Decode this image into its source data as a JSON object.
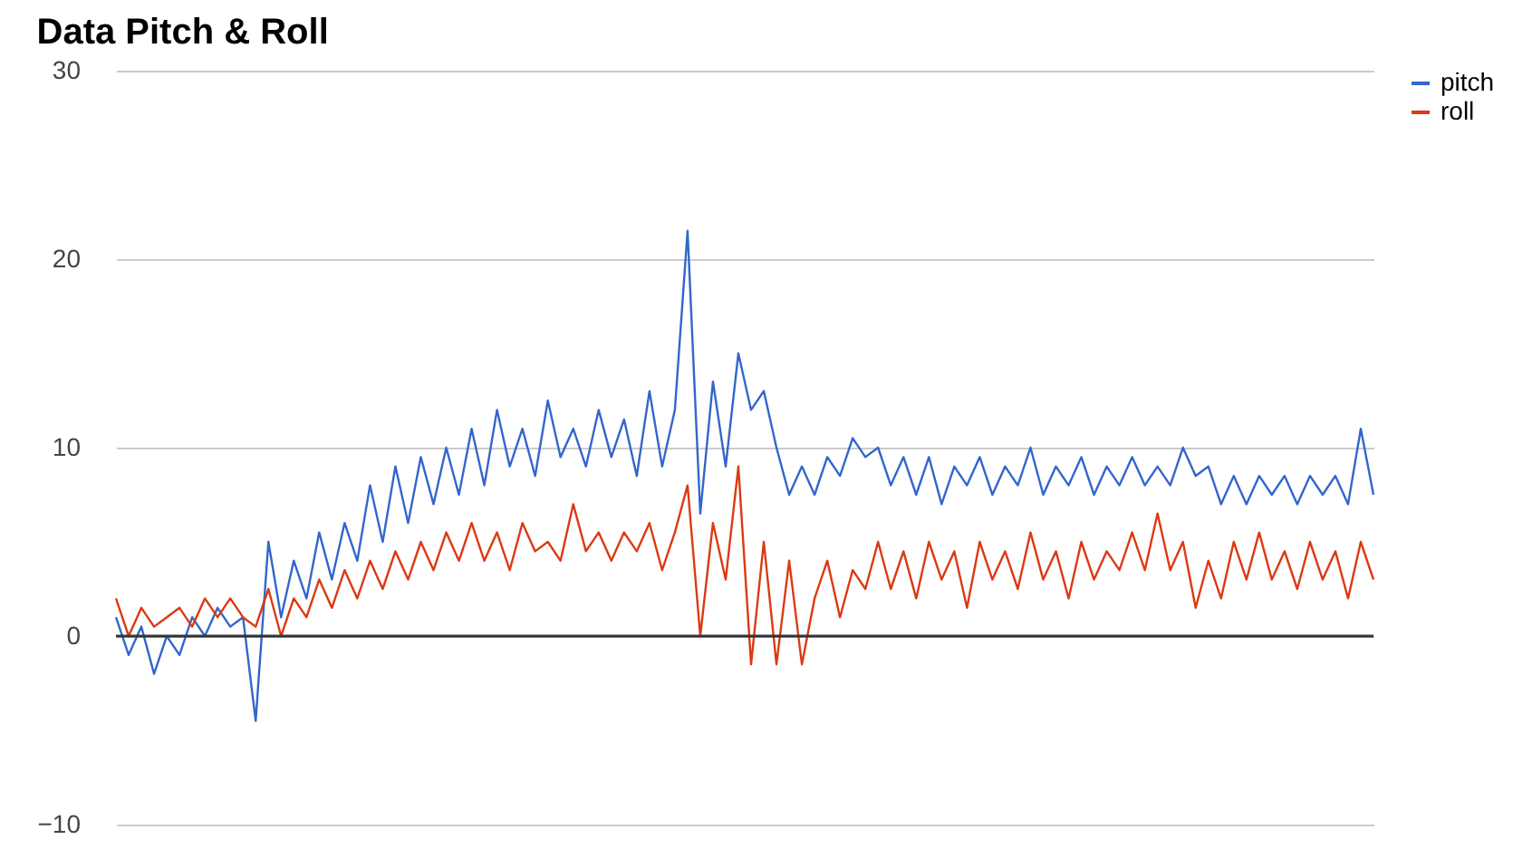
{
  "chart_data": {
    "type": "line",
    "title": "Data Pitch & Roll",
    "categories": [
      null,
      null,
      null,
      null,
      null,
      null,
      null,
      null,
      null,
      null,
      null,
      null,
      null,
      null,
      null,
      null,
      null,
      null,
      null,
      null,
      null,
      null,
      null,
      null,
      null,
      null,
      null,
      null,
      null,
      null,
      null,
      null,
      null,
      null,
      null,
      null,
      null,
      null,
      null,
      null,
      null,
      null,
      null,
      null,
      null,
      null,
      null,
      null,
      null,
      null,
      null,
      null,
      null,
      null,
      null,
      null,
      null,
      null,
      null,
      null,
      null,
      null,
      null,
      null,
      null,
      null,
      null,
      null,
      null,
      null,
      null,
      null,
      null,
      null,
      null,
      null,
      null,
      null,
      null,
      null,
      null,
      null,
      null,
      null,
      null,
      null,
      null,
      null,
      null,
      null,
      null,
      null,
      null,
      null,
      null,
      null,
      null,
      null,
      null,
      null
    ],
    "series": [
      {
        "name": "pitch",
        "color": "#3366cc",
        "values": [
          1,
          -1,
          0.5,
          -2,
          0,
          -1,
          1,
          0,
          1.5,
          0.5,
          1,
          -4.5,
          5,
          1,
          4,
          2,
          5.5,
          3,
          6,
          4,
          8,
          5,
          9,
          6,
          9.5,
          7,
          10,
          7.5,
          11,
          8,
          12,
          9,
          11,
          8.5,
          12.5,
          9.5,
          11,
          9,
          12,
          9.5,
          11.5,
          8.5,
          13,
          9,
          12,
          21.5,
          6.5,
          13.5,
          9,
          15,
          12,
          13,
          10,
          7.5,
          9,
          7.5,
          9.5,
          8.5,
          10.5,
          9.5,
          10,
          8,
          9.5,
          7.5,
          9.5,
          7,
          9,
          8,
          9.5,
          7.5,
          9,
          8,
          10,
          7.5,
          9,
          8,
          9.5,
          7.5,
          9,
          8,
          9.5,
          8,
          9,
          8,
          10,
          8.5,
          9,
          7,
          8.5,
          7,
          8.5,
          7.5,
          8.5,
          7,
          8.5,
          7.5,
          8.5,
          7,
          11,
          7.5
        ]
      },
      {
        "name": "roll",
        "color": "#dc3912",
        "values": [
          2,
          0,
          1.5,
          0.5,
          1,
          1.5,
          0.5,
          2,
          1,
          2,
          1,
          0.5,
          2.5,
          0,
          2,
          1,
          3,
          1.5,
          3.5,
          2,
          4,
          2.5,
          4.5,
          3,
          5,
          3.5,
          5.5,
          4,
          6,
          4,
          5.5,
          3.5,
          6,
          4.5,
          5,
          4,
          7,
          4.5,
          5.5,
          4,
          5.5,
          4.5,
          6,
          3.5,
          5.5,
          8,
          0,
          6,
          3,
          9,
          -1.5,
          5,
          -1.5,
          4,
          -1.5,
          2,
          4,
          1,
          3.5,
          2.5,
          5,
          2.5,
          4.5,
          2,
          5,
          3,
          4.5,
          1.5,
          5,
          3,
          4.5,
          2.5,
          5.5,
          3,
          4.5,
          2,
          5,
          3,
          4.5,
          3.5,
          5.5,
          3.5,
          6.5,
          3.5,
          5,
          1.5,
          4,
          2,
          5,
          3,
          5.5,
          3,
          4.5,
          2.5,
          5,
          3,
          4.5,
          2,
          5,
          3
        ]
      }
    ],
    "ylim": [
      -10,
      30
    ],
    "yticks": [
      -10,
      0,
      10,
      20,
      30
    ],
    "grid": "y",
    "tick_labels": "y",
    "legend": "top right",
    "line_style": "solid",
    "marker": "none",
    "ref_lines": [
      {
        "axis": "y",
        "value": 0,
        "color": "#333333"
      }
    ]
  }
}
